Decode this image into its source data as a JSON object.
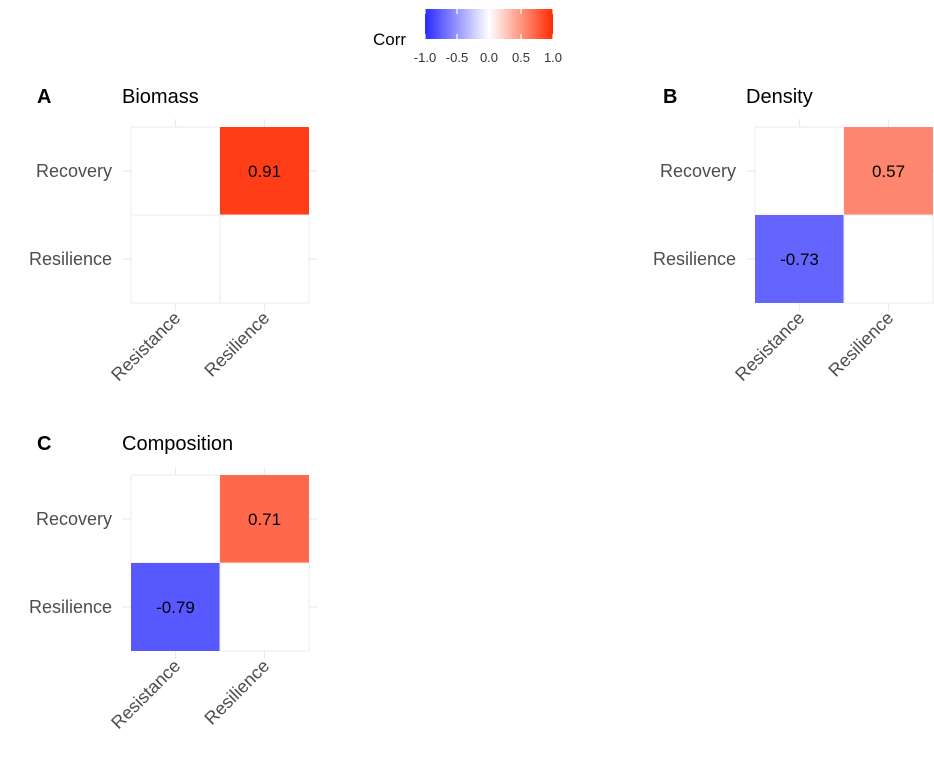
{
  "legend": {
    "title": "Corr",
    "ticks": [
      "-1.0",
      "-0.5",
      "0.0",
      "0.5",
      "1.0"
    ],
    "tick_values": [
      -1.0,
      -0.5,
      0.0,
      0.5,
      1.0
    ],
    "colors": {
      "low": "#2b2bff",
      "mid": "#ffffff",
      "high": "#ff2b00"
    },
    "range": [
      -1,
      1
    ]
  },
  "chart_data": [
    {
      "type": "heatmap",
      "tag": "A",
      "title": "Biomass",
      "x_categories": [
        "Resistance",
        "Resilience"
      ],
      "y_categories": [
        "Recovery",
        "Resilience"
      ],
      "cells": [
        {
          "x": "Resilience",
          "y": "Recovery",
          "value": 0.91,
          "label": "0.91"
        }
      ]
    },
    {
      "type": "heatmap",
      "tag": "B",
      "title": "Density",
      "x_categories": [
        "Resistance",
        "Resilience"
      ],
      "y_categories": [
        "Recovery",
        "Resilience"
      ],
      "cells": [
        {
          "x": "Resilience",
          "y": "Recovery",
          "value": 0.57,
          "label": "0.57"
        },
        {
          "x": "Resistance",
          "y": "Resilience",
          "value": -0.73,
          "label": "-0.73"
        }
      ]
    },
    {
      "type": "heatmap",
      "tag": "C",
      "title": "Composition",
      "x_categories": [
        "Resistance",
        "Resilience"
      ],
      "y_categories": [
        "Recovery",
        "Resilience"
      ],
      "cells": [
        {
          "x": "Resilience",
          "y": "Recovery",
          "value": 0.71,
          "label": "0.71"
        },
        {
          "x": "Resistance",
          "y": "Resilience",
          "value": -0.79,
          "label": "-0.79"
        }
      ]
    }
  ]
}
